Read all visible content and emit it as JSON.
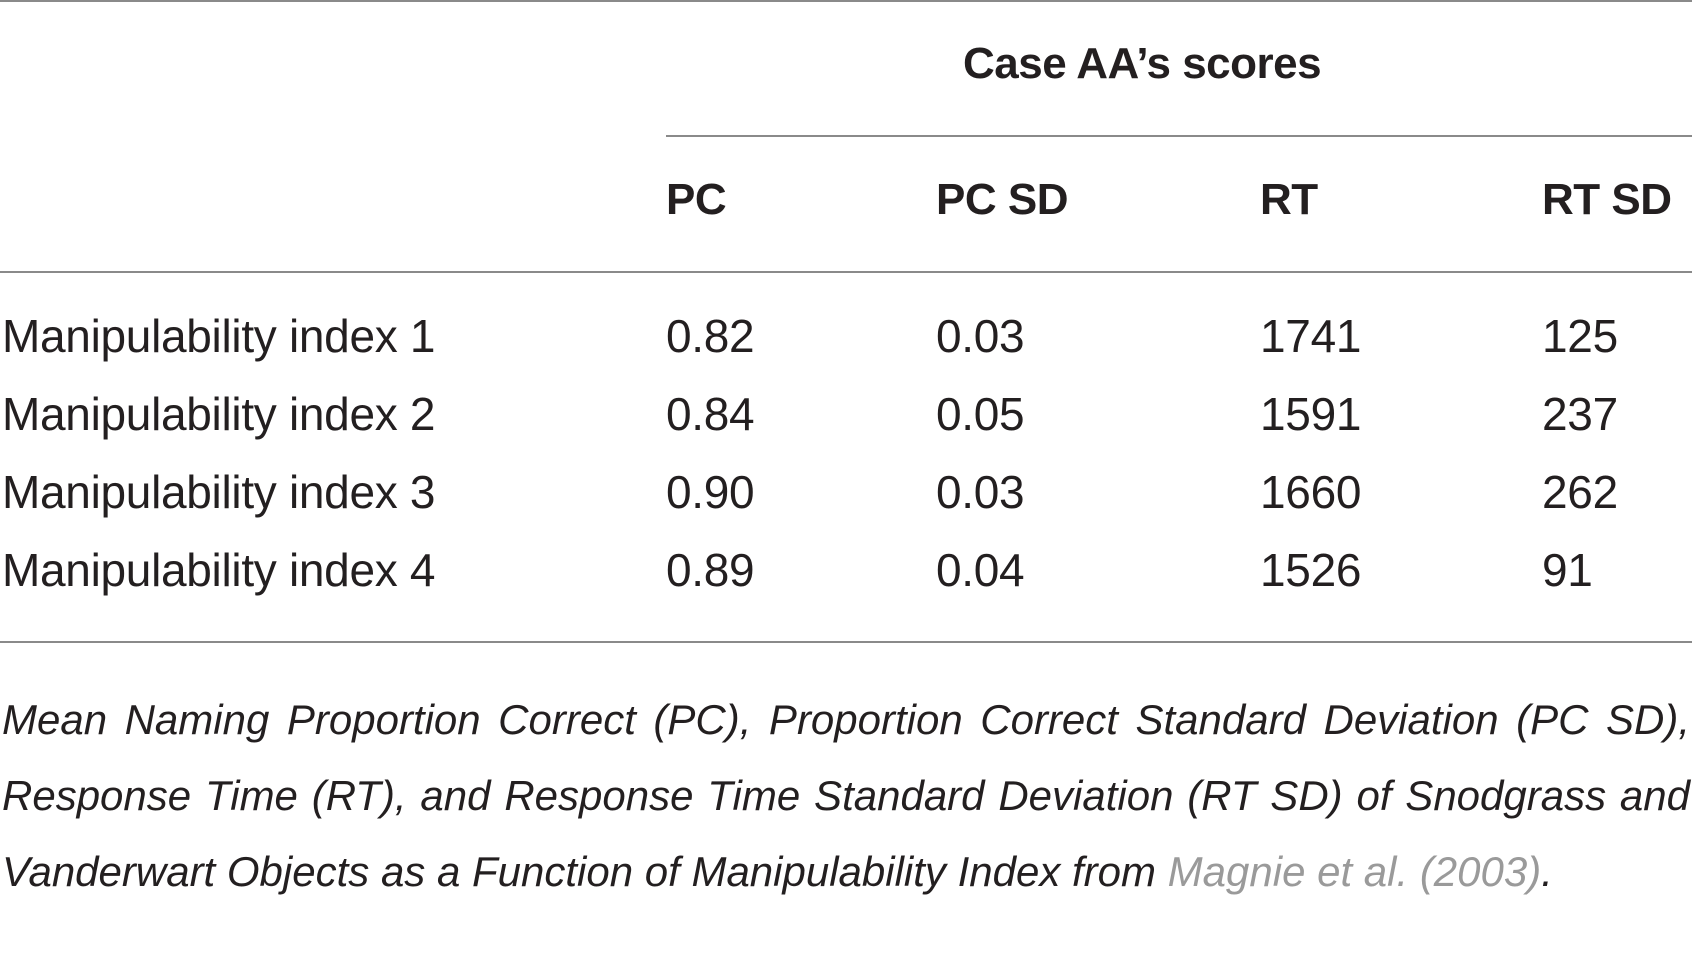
{
  "table": {
    "group_header": "Case AA’s scores",
    "columns": [
      "PC",
      "PC SD",
      "RT",
      "RT SD"
    ],
    "rows": [
      {
        "label": "Manipulability index 1",
        "pc": "0.82",
        "pc_sd": "0.03",
        "rt": "1741",
        "rt_sd": "125"
      },
      {
        "label": "Manipulability index 2",
        "pc": "0.84",
        "pc_sd": "0.05",
        "rt": "1591",
        "rt_sd": "237"
      },
      {
        "label": "Manipulability index 3",
        "pc": "0.90",
        "pc_sd": "0.03",
        "rt": "1660",
        "rt_sd": "262"
      },
      {
        "label": "Manipulability index 4",
        "pc": "0.89",
        "pc_sd": "0.04",
        "rt": "1526",
        "rt_sd": "91"
      }
    ]
  },
  "caption": {
    "text": "Mean Naming Proportion Correct (PC), Proportion Correct Standard Deviation (PC SD), Response Time (RT), and Response Time Standard Deviation (RT SD) of Snodgrass and Vanderwart Objects as a Function of Manipulability Index from ",
    "reference": "Magnie et al. (2003)",
    "end": "."
  }
}
